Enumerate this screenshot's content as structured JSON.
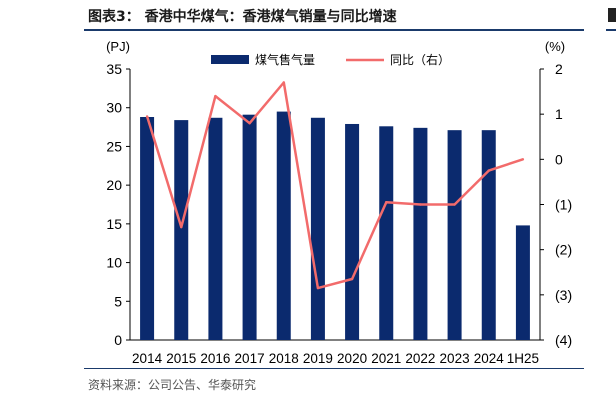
{
  "header": {
    "title": "图表3：  香港中华煤气：香港煤气销量与同比增速"
  },
  "footer": {
    "source": "资料来源：公司公告、华泰研究"
  },
  "chart_data": {
    "type": "bar+line",
    "title": "香港中华煤气：香港煤气销量与同比增速",
    "categories": [
      "2014",
      "2015",
      "2016",
      "2017",
      "2018",
      "2019",
      "2020",
      "2021",
      "2022",
      "2023",
      "2024",
      "1H25"
    ],
    "series": [
      {
        "name": "煤气售气量",
        "type": "bar",
        "axis": "left",
        "color": "#0b2a6e",
        "values": [
          28.8,
          28.4,
          28.7,
          29.1,
          29.5,
          28.7,
          27.9,
          27.6,
          27.4,
          27.1,
          27.1,
          14.8
        ]
      },
      {
        "name": "同比（右）",
        "type": "line",
        "axis": "right",
        "color": "#f26b6b",
        "values": [
          0.95,
          -1.5,
          1.4,
          0.8,
          1.7,
          -2.85,
          -2.65,
          -0.95,
          -1.0,
          -1.0,
          -0.25,
          0.0
        ]
      }
    ],
    "y_left": {
      "label": "(PJ)",
      "min": 0,
      "max": 35,
      "ticks": [
        0,
        5,
        10,
        15,
        20,
        25,
        30,
        35
      ],
      "tick_labels": [
        "0",
        "5",
        "10",
        "15",
        "20",
        "25",
        "30",
        "35"
      ]
    },
    "y_right": {
      "label": "(%)",
      "min": -4,
      "max": 2,
      "ticks": [
        2,
        1,
        0,
        -1,
        -2,
        -3,
        -4
      ],
      "tick_labels": [
        "2",
        "1",
        "0",
        "(1)",
        "(2)",
        "(3)",
        "(4)"
      ]
    },
    "legend": {
      "position": "top-center"
    },
    "grid": false
  }
}
